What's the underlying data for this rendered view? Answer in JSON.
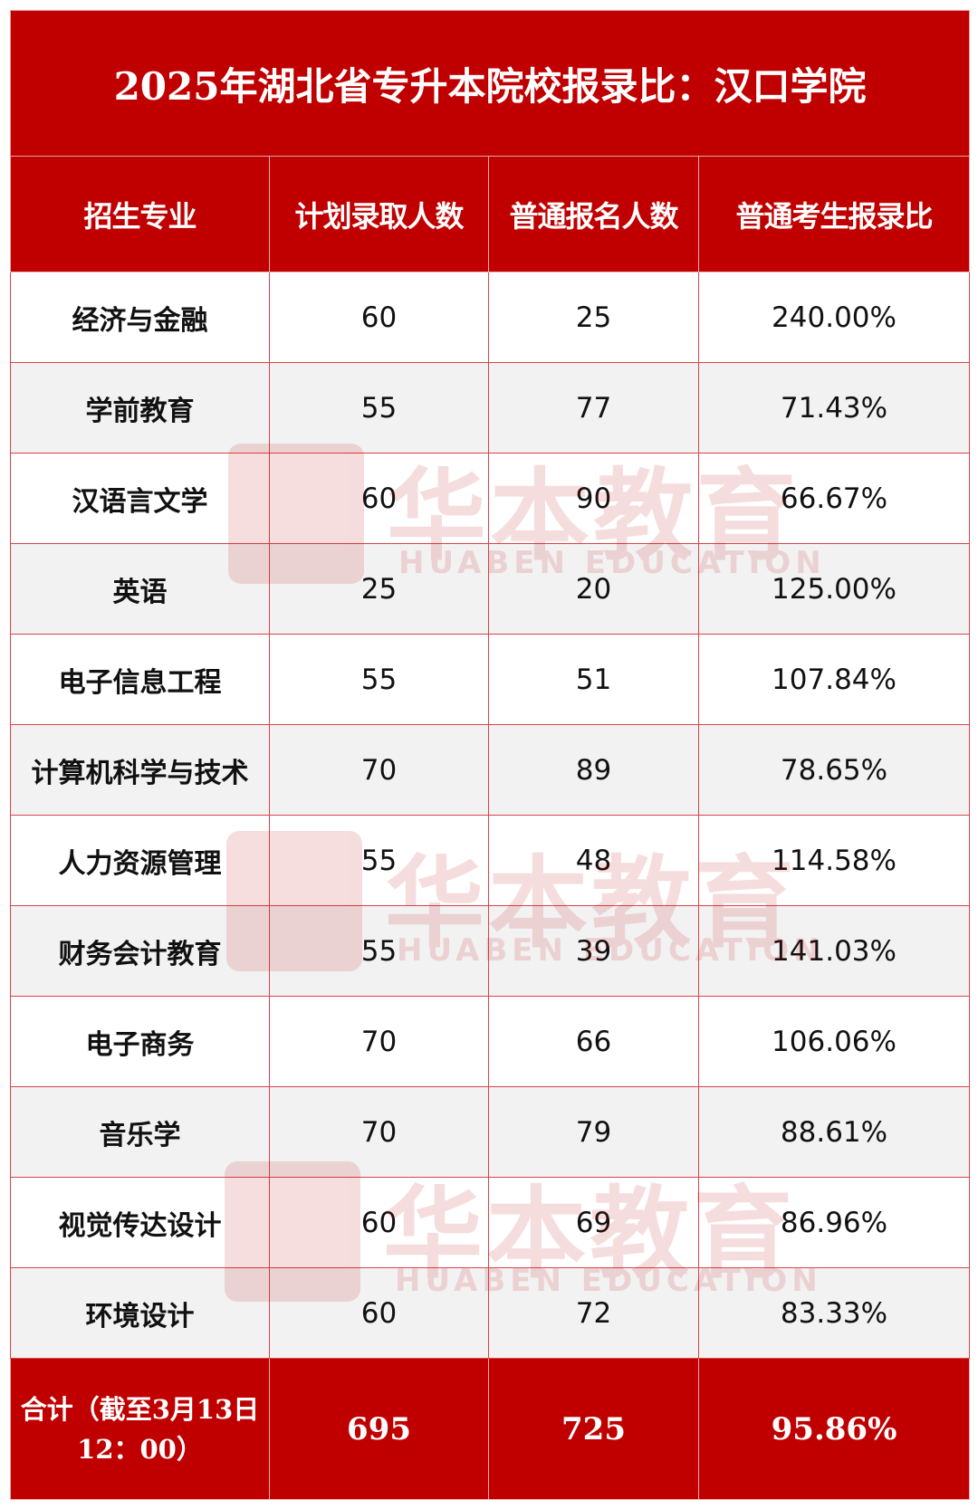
{
  "title": "2025年湖北省专升本院校报录比：汉口学院",
  "headers": [
    "招生专业",
    "计划录取人数",
    "普通报名人数",
    "普通考生报录比"
  ],
  "rows": [
    {
      "major": "经济与金融",
      "plan": "60",
      "applicants": "25",
      "ratio": "240.00%"
    },
    {
      "major": "学前教育",
      "plan": "55",
      "applicants": "77",
      "ratio": "71.43%"
    },
    {
      "major": "汉语言文学",
      "plan": "60",
      "applicants": "90",
      "ratio": "66.67%"
    },
    {
      "major": "英语",
      "plan": "25",
      "applicants": "20",
      "ratio": "125.00%"
    },
    {
      "major": "电子信息工程",
      "plan": "55",
      "applicants": "51",
      "ratio": "107.84%"
    },
    {
      "major": "计算机科学与技术",
      "plan": "70",
      "applicants": "89",
      "ratio": "78.65%"
    },
    {
      "major": "人力资源管理",
      "plan": "55",
      "applicants": "48",
      "ratio": "114.58%"
    },
    {
      "major": "财务会计教育",
      "plan": "55",
      "applicants": "39",
      "ratio": "141.03%"
    },
    {
      "major": "电子商务",
      "plan": "70",
      "applicants": "66",
      "ratio": "106.06%"
    },
    {
      "major": "音乐学",
      "plan": "70",
      "applicants": "79",
      "ratio": "88.61%"
    },
    {
      "major": "视觉传达设计",
      "plan": "60",
      "applicants": "69",
      "ratio": "86.96%"
    },
    {
      "major": "环境设计",
      "plan": "60",
      "applicants": "72",
      "ratio": "83.33%"
    }
  ],
  "total": {
    "label": "合计（截至3月13日12：00）",
    "plan": "695",
    "applicants": "725",
    "ratio": "95.86%"
  },
  "watermark": {
    "cn": "华本教育",
    "en": "HUABEN EDUCATION"
  },
  "colors": {
    "header_bg": "#c00000",
    "alt_row": "#f2f2f2",
    "border": "#d9444a"
  }
}
